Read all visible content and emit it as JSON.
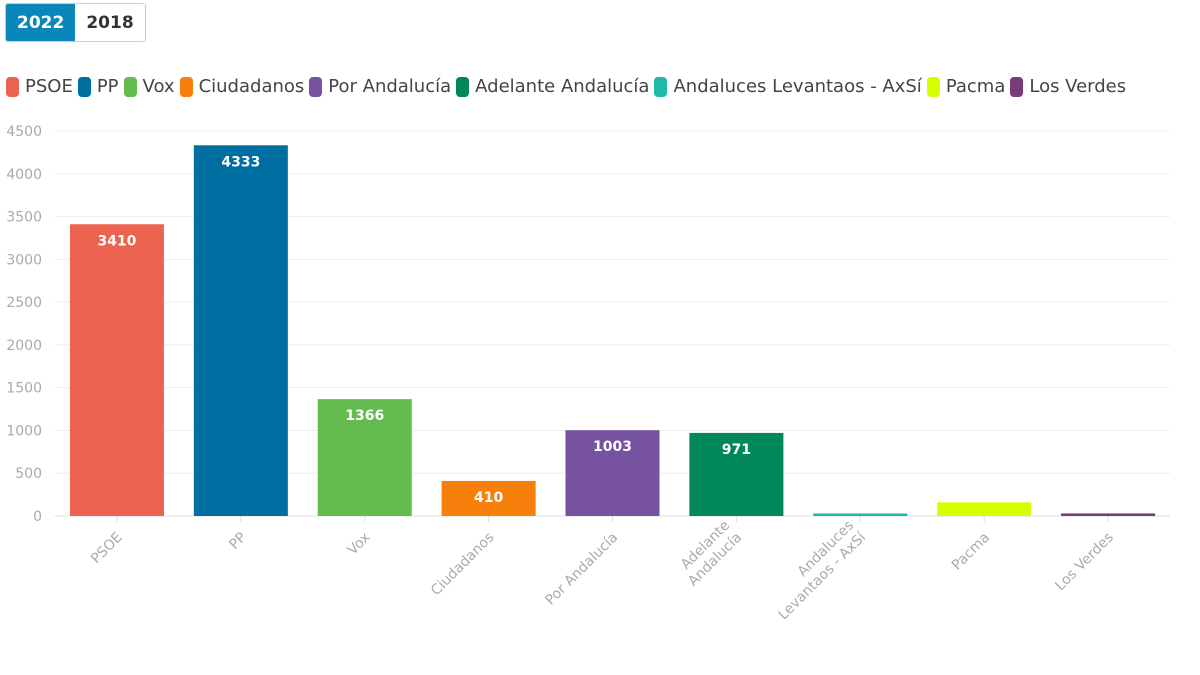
{
  "year_toggle": {
    "options": [
      "2022",
      "2018"
    ],
    "selected": "2022"
  },
  "chart_data": {
    "type": "bar",
    "categories": [
      "PSOE",
      "PP",
      "Vox",
      "Ciudadanos",
      "Por Andalucía",
      "Adelante Andalucía",
      "Andaluces Levantaos - AxSí",
      "Pacma",
      "Los Verdes"
    ],
    "category_label_lines": [
      [
        "PSOE"
      ],
      [
        "PP"
      ],
      [
        "Vox"
      ],
      [
        "Ciudadanos"
      ],
      [
        "Por Andalucía"
      ],
      [
        "Adelante",
        "Andalucía"
      ],
      [
        "Andaluces",
        "Levantaos - AxSí"
      ],
      [
        "Pacma"
      ],
      [
        "Los Verdes"
      ]
    ],
    "values": [
      3410,
      4333,
      1366,
      410,
      1003,
      971,
      30,
      160,
      30
    ],
    "data_labels": [
      "3410",
      "4333",
      "1366",
      "410",
      "1003",
      "971",
      null,
      null,
      null
    ],
    "colors": [
      "#ec6350",
      "#006ea0",
      "#64bb50",
      "#f77f0b",
      "#7752a0",
      "#00875a",
      "#1fb9a9",
      "#d7ff00",
      "#7a3b7a"
    ],
    "ylim": [
      0,
      4500
    ],
    "yticks": [
      0,
      500,
      1000,
      1500,
      2000,
      2500,
      3000,
      3500,
      4000,
      4500
    ],
    "grid": true,
    "legend_position": "top-left",
    "title": "",
    "xlabel": "",
    "ylabel": ""
  }
}
